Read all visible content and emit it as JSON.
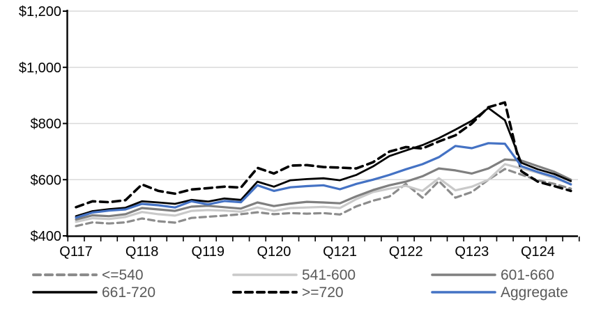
{
  "chart_data": {
    "type": "line",
    "title": "",
    "xlabel": "",
    "ylabel": "",
    "ylim": [
      400,
      1200
    ],
    "grid": "horizontal",
    "legend_position": "bottom",
    "y_ticks": [
      {
        "value": 400,
        "label": "$400"
      },
      {
        "value": 600,
        "label": "$600"
      },
      {
        "value": 800,
        "label": "$800"
      },
      {
        "value": 1000,
        "label": "$1,000"
      },
      {
        "value": 1200,
        "label": "$1,200"
      }
    ],
    "x_tick_labels": [
      {
        "index": 0,
        "label": "Q117"
      },
      {
        "index": 4,
        "label": "Q118"
      },
      {
        "index": 8,
        "label": "Q119"
      },
      {
        "index": 12,
        "label": "Q120"
      },
      {
        "index": 16,
        "label": "Q121"
      },
      {
        "index": 20,
        "label": "Q122"
      },
      {
        "index": 24,
        "label": "Q123"
      },
      {
        "index": 28,
        "label": "Q124"
      }
    ],
    "categories": [
      "Q1 2017",
      "Q2 2017",
      "Q3 2017",
      "Q4 2017",
      "Q1 2018",
      "Q2 2018",
      "Q3 2018",
      "Q4 2018",
      "Q1 2019",
      "Q2 2019",
      "Q3 2019",
      "Q4 2019",
      "Q1 2020",
      "Q2 2020",
      "Q3 2020",
      "Q4 2020",
      "Q1 2021",
      "Q2 2021",
      "Q3 2021",
      "Q4 2021",
      "Q1 2022",
      "Q2 2022",
      "Q3 2022",
      "Q4 2022",
      "Q1 2023",
      "Q2 2023",
      "Q3 2023",
      "Q4 2023",
      "Q1 2024",
      "Q2 2024",
      "Q3 2024"
    ],
    "series": [
      {
        "name": "<=540",
        "color": "#8C8C8C",
        "line_style": "dashed",
        "values": [
          435,
          448,
          444,
          448,
          462,
          452,
          447,
          464,
          468,
          472,
          477,
          484,
          477,
          481,
          479,
          481,
          476,
          505,
          525,
          540,
          585,
          536,
          595,
          536,
          556,
          600,
          638,
          618,
          598,
          585,
          568
        ]
      },
      {
        "name": "541-600",
        "color": "#C9C9C9",
        "line_style": "solid",
        "values": [
          450,
          463,
          460,
          467,
          485,
          477,
          472,
          489,
          492,
          490,
          486,
          501,
          489,
          499,
          501,
          503,
          499,
          531,
          556,
          568,
          578,
          560,
          605,
          562,
          575,
          600,
          655,
          640,
          625,
          605,
          585
        ]
      },
      {
        "name": "601-660",
        "color": "#7F7F7F",
        "line_style": "solid",
        "values": [
          458,
          473,
          470,
          477,
          499,
          494,
          489,
          504,
          507,
          502,
          497,
          519,
          506,
          515,
          521,
          519,
          516,
          541,
          563,
          580,
          593,
          612,
          640,
          633,
          622,
          640,
          672,
          668,
          648,
          628,
          600
        ]
      },
      {
        "name": "661-720",
        "color": "#000000",
        "line_style": "solid",
        "values": [
          470,
          488,
          495,
          500,
          523,
          519,
          514,
          528,
          522,
          533,
          528,
          593,
          575,
          598,
          602,
          605,
          598,
          617,
          647,
          684,
          704,
          723,
          748,
          778,
          810,
          855,
          812,
          660,
          637,
          620,
          595
        ]
      },
      {
        "name": ">=720",
        "color": "#000000",
        "line_style": "dashed",
        "values": [
          502,
          523,
          520,
          527,
          583,
          560,
          550,
          565,
          570,
          575,
          572,
          642,
          622,
          650,
          652,
          645,
          643,
          640,
          662,
          700,
          716,
          711,
          736,
          758,
          800,
          858,
          875,
          630,
          593,
          577,
          560
        ]
      },
      {
        "name": "Aggregate",
        "color": "#4472C4",
        "line_style": "solid",
        "values": [
          465,
          483,
          490,
          494,
          514,
          509,
          501,
          523,
          512,
          524,
          520,
          580,
          560,
          573,
          577,
          580,
          566,
          585,
          600,
          617,
          637,
          655,
          680,
          720,
          712,
          730,
          728,
          648,
          627,
          610,
          583
        ]
      }
    ],
    "legend_text_color": "#595959",
    "gridline_color": "#D9D9D9",
    "axis_color": "#000000"
  }
}
